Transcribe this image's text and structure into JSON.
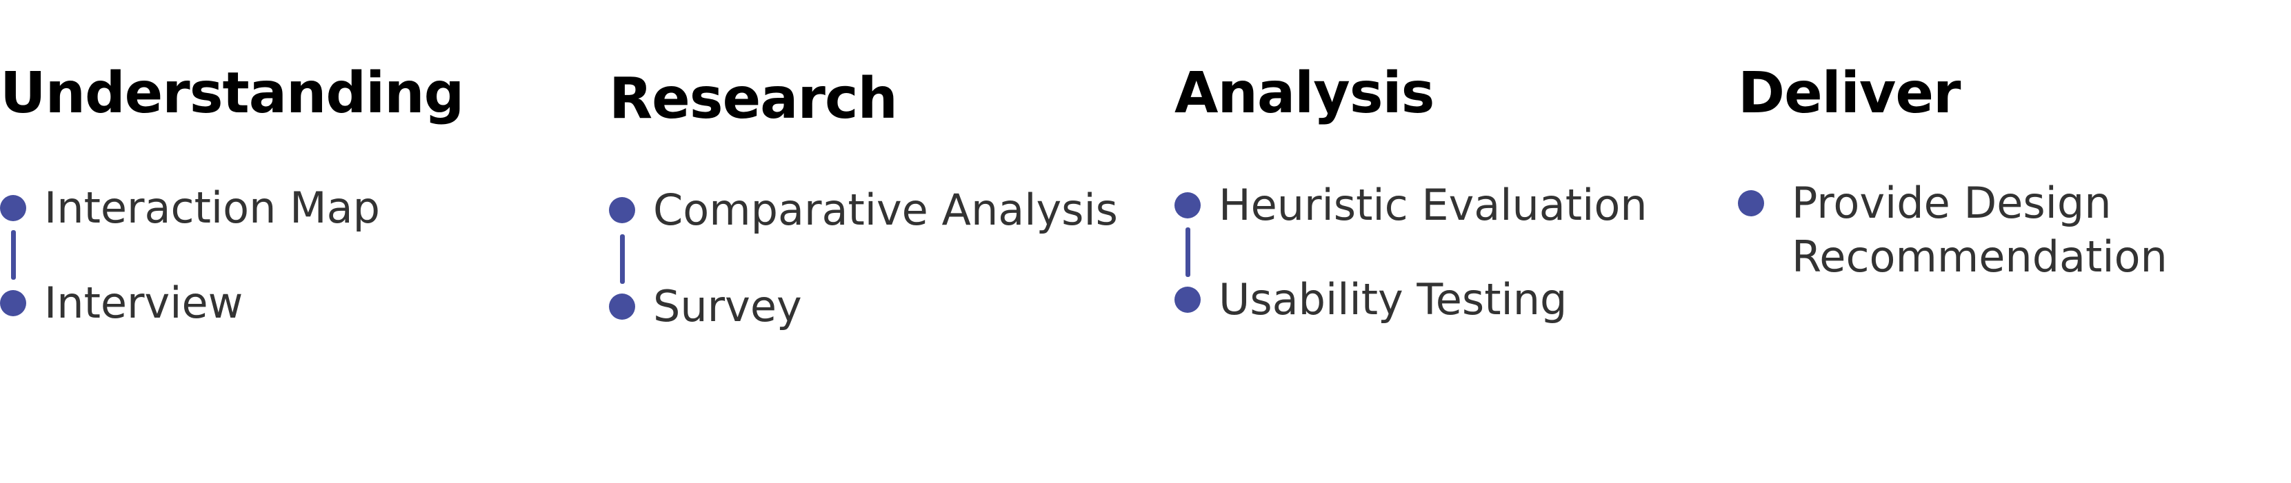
{
  "accent_color": "#454e9e",
  "phases": [
    {
      "title": "Understanding",
      "steps": [
        "Interaction Map",
        "Interview"
      ]
    },
    {
      "title": "Research",
      "steps": [
        "Comparative Analysis",
        "Survey"
      ]
    },
    {
      "title": "Analysis",
      "steps": [
        "Heuristic Evaluation",
        "Usability Testing"
      ]
    },
    {
      "title": "Deliver",
      "steps": [
        "Provide Design",
        "Recommendation"
      ]
    }
  ]
}
